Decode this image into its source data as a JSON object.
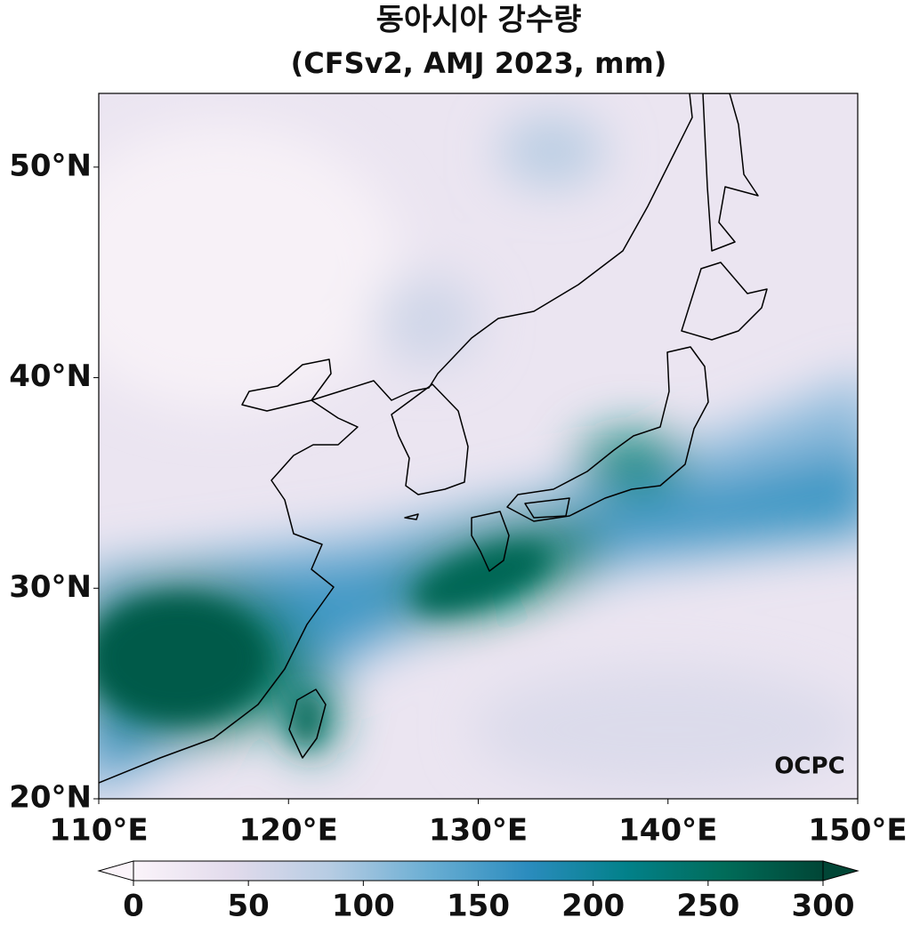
{
  "title": "동아시아 강수량",
  "subtitle": "(CFSv2, AMJ 2023, mm)",
  "map": {
    "xlim": [
      110,
      150
    ],
    "ylim": [
      20,
      53.5
    ],
    "xticks": [
      {
        "value": 110,
        "label": "110°E"
      },
      {
        "value": 120,
        "label": "120°E"
      },
      {
        "value": 130,
        "label": "130°E"
      },
      {
        "value": 140,
        "label": "140°E"
      },
      {
        "value": 150,
        "label": "150°E"
      }
    ],
    "yticks": [
      {
        "value": 20,
        "label": "20°N"
      },
      {
        "value": 30,
        "label": "30°N"
      },
      {
        "value": 40,
        "label": "40°N"
      },
      {
        "value": 50,
        "label": "50°N"
      }
    ]
  },
  "colorbar": {
    "lim": [
      0,
      300
    ],
    "ticks": [
      0,
      50,
      100,
      150,
      200,
      250,
      300
    ],
    "colors": [
      "#fbf4fa",
      "#e2dbec",
      "#b6cce3",
      "#6aaed3",
      "#2b8cbe",
      "#02818a",
      "#016c59",
      "#014636"
    ]
  },
  "logo": "OCPC"
}
